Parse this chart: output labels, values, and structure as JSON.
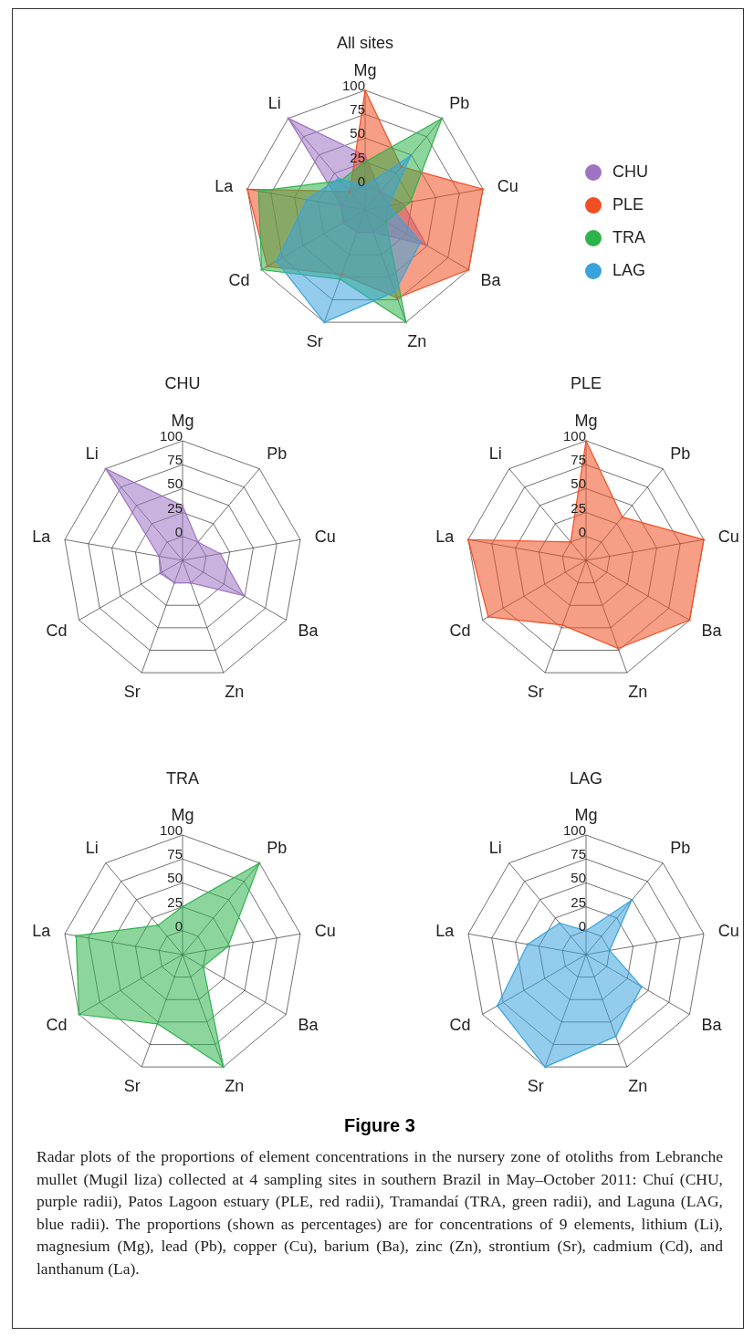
{
  "chart_data": [
    {
      "type": "radar",
      "title": "All sites",
      "categories": [
        "Mg",
        "Pb",
        "Cu",
        "Ba",
        "Zn",
        "Sr",
        "Cd",
        "La",
        "Li"
      ],
      "ylim": [
        -25,
        100
      ],
      "yticks": [
        0,
        25,
        50,
        75,
        100
      ],
      "grid": true,
      "marker": "circle",
      "legend": "right",
      "series": [
        {
          "name": "CHU",
          "color": "#9e73c2",
          "values": [
            32,
            0,
            15,
            49,
            0,
            0,
            2,
            0,
            100
          ]
        },
        {
          "name": "PLE",
          "color": "#f04e23",
          "values": [
            100,
            34,
            100,
            100,
            73,
            47,
            93,
            100,
            0
          ]
        },
        {
          "name": "TRA",
          "color": "#2db34a",
          "values": [
            25,
            100,
            23,
            0,
            100,
            52,
            100,
            88,
            15
          ]
        },
        {
          "name": "LAG",
          "color": "#3aa3dc",
          "values": [
            0,
            49,
            0,
            42,
            66,
            100,
            82,
            37,
            18
          ]
        }
      ]
    },
    {
      "type": "radar",
      "title": "CHU",
      "categories": [
        "Mg",
        "Pb",
        "Cu",
        "Ba",
        "Zn",
        "Sr",
        "Cd",
        "La",
        "Li"
      ],
      "ylim": [
        -25,
        100
      ],
      "yticks": [
        0,
        25,
        50,
        75,
        100
      ],
      "grid": true,
      "marker": "circle",
      "series": [
        {
          "color": "#9e73c2",
          "values": [
            32,
            0,
            15,
            49,
            0,
            0,
            2,
            0,
            100
          ]
        }
      ]
    },
    {
      "type": "radar",
      "title": "PLE",
      "categories": [
        "Mg",
        "Pb",
        "Cu",
        "Ba",
        "Zn",
        "Sr",
        "Cd",
        "La",
        "Li"
      ],
      "ylim": [
        -25,
        100
      ],
      "yticks": [
        0,
        25,
        50,
        75,
        100
      ],
      "grid": true,
      "marker": "circle",
      "series": [
        {
          "color": "#f04e23",
          "values": [
            100,
            34,
            100,
            100,
            73,
            47,
            93,
            100,
            0
          ]
        }
      ]
    },
    {
      "type": "radar",
      "title": "TRA",
      "categories": [
        "Mg",
        "Pb",
        "Cu",
        "Ba",
        "Zn",
        "Sr",
        "Cd",
        "La",
        "Li"
      ],
      "ylim": [
        -25,
        100
      ],
      "yticks": [
        0,
        25,
        50,
        75,
        100
      ],
      "grid": true,
      "marker": "circle",
      "series": [
        {
          "color": "#2db34a",
          "values": [
            25,
            100,
            23,
            0,
            100,
            52,
            100,
            88,
            15
          ]
        }
      ]
    },
    {
      "type": "radar",
      "title": "LAG",
      "categories": [
        "Mg",
        "Pb",
        "Cu",
        "Ba",
        "Zn",
        "Sr",
        "Cd",
        "La",
        "Li"
      ],
      "ylim": [
        -25,
        100
      ],
      "yticks": [
        0,
        25,
        50,
        75,
        100
      ],
      "grid": true,
      "marker": "circle",
      "series": [
        {
          "color": "#3aa3dc",
          "values": [
            0,
            49,
            0,
            42,
            66,
            100,
            82,
            37,
            18
          ]
        }
      ],
      "annotations": [
        "Figure 3",
        "Radar plots of the proportions of element concentrations in the nursery zone of otoliths from Lebranche mullet (Mugil liza) collected at 4 sampling sites in southern Brazil in May–October 2011: Chuí (CHU, purple radii), Patos Lagoon estuary (PLE, red radii), Tramandaí (TRA, green radii), and Laguna (LAG, blue radii). The proportions (shown as percentages) are for concentrations of 9 elements, lithium (Li), magnesium (Mg), lead (Pb), copper (Cu), barium (Ba), zinc (Zn), strontium (Sr), cadmium (Cd), and lanthanum (La)."
      ]
    }
  ]
}
